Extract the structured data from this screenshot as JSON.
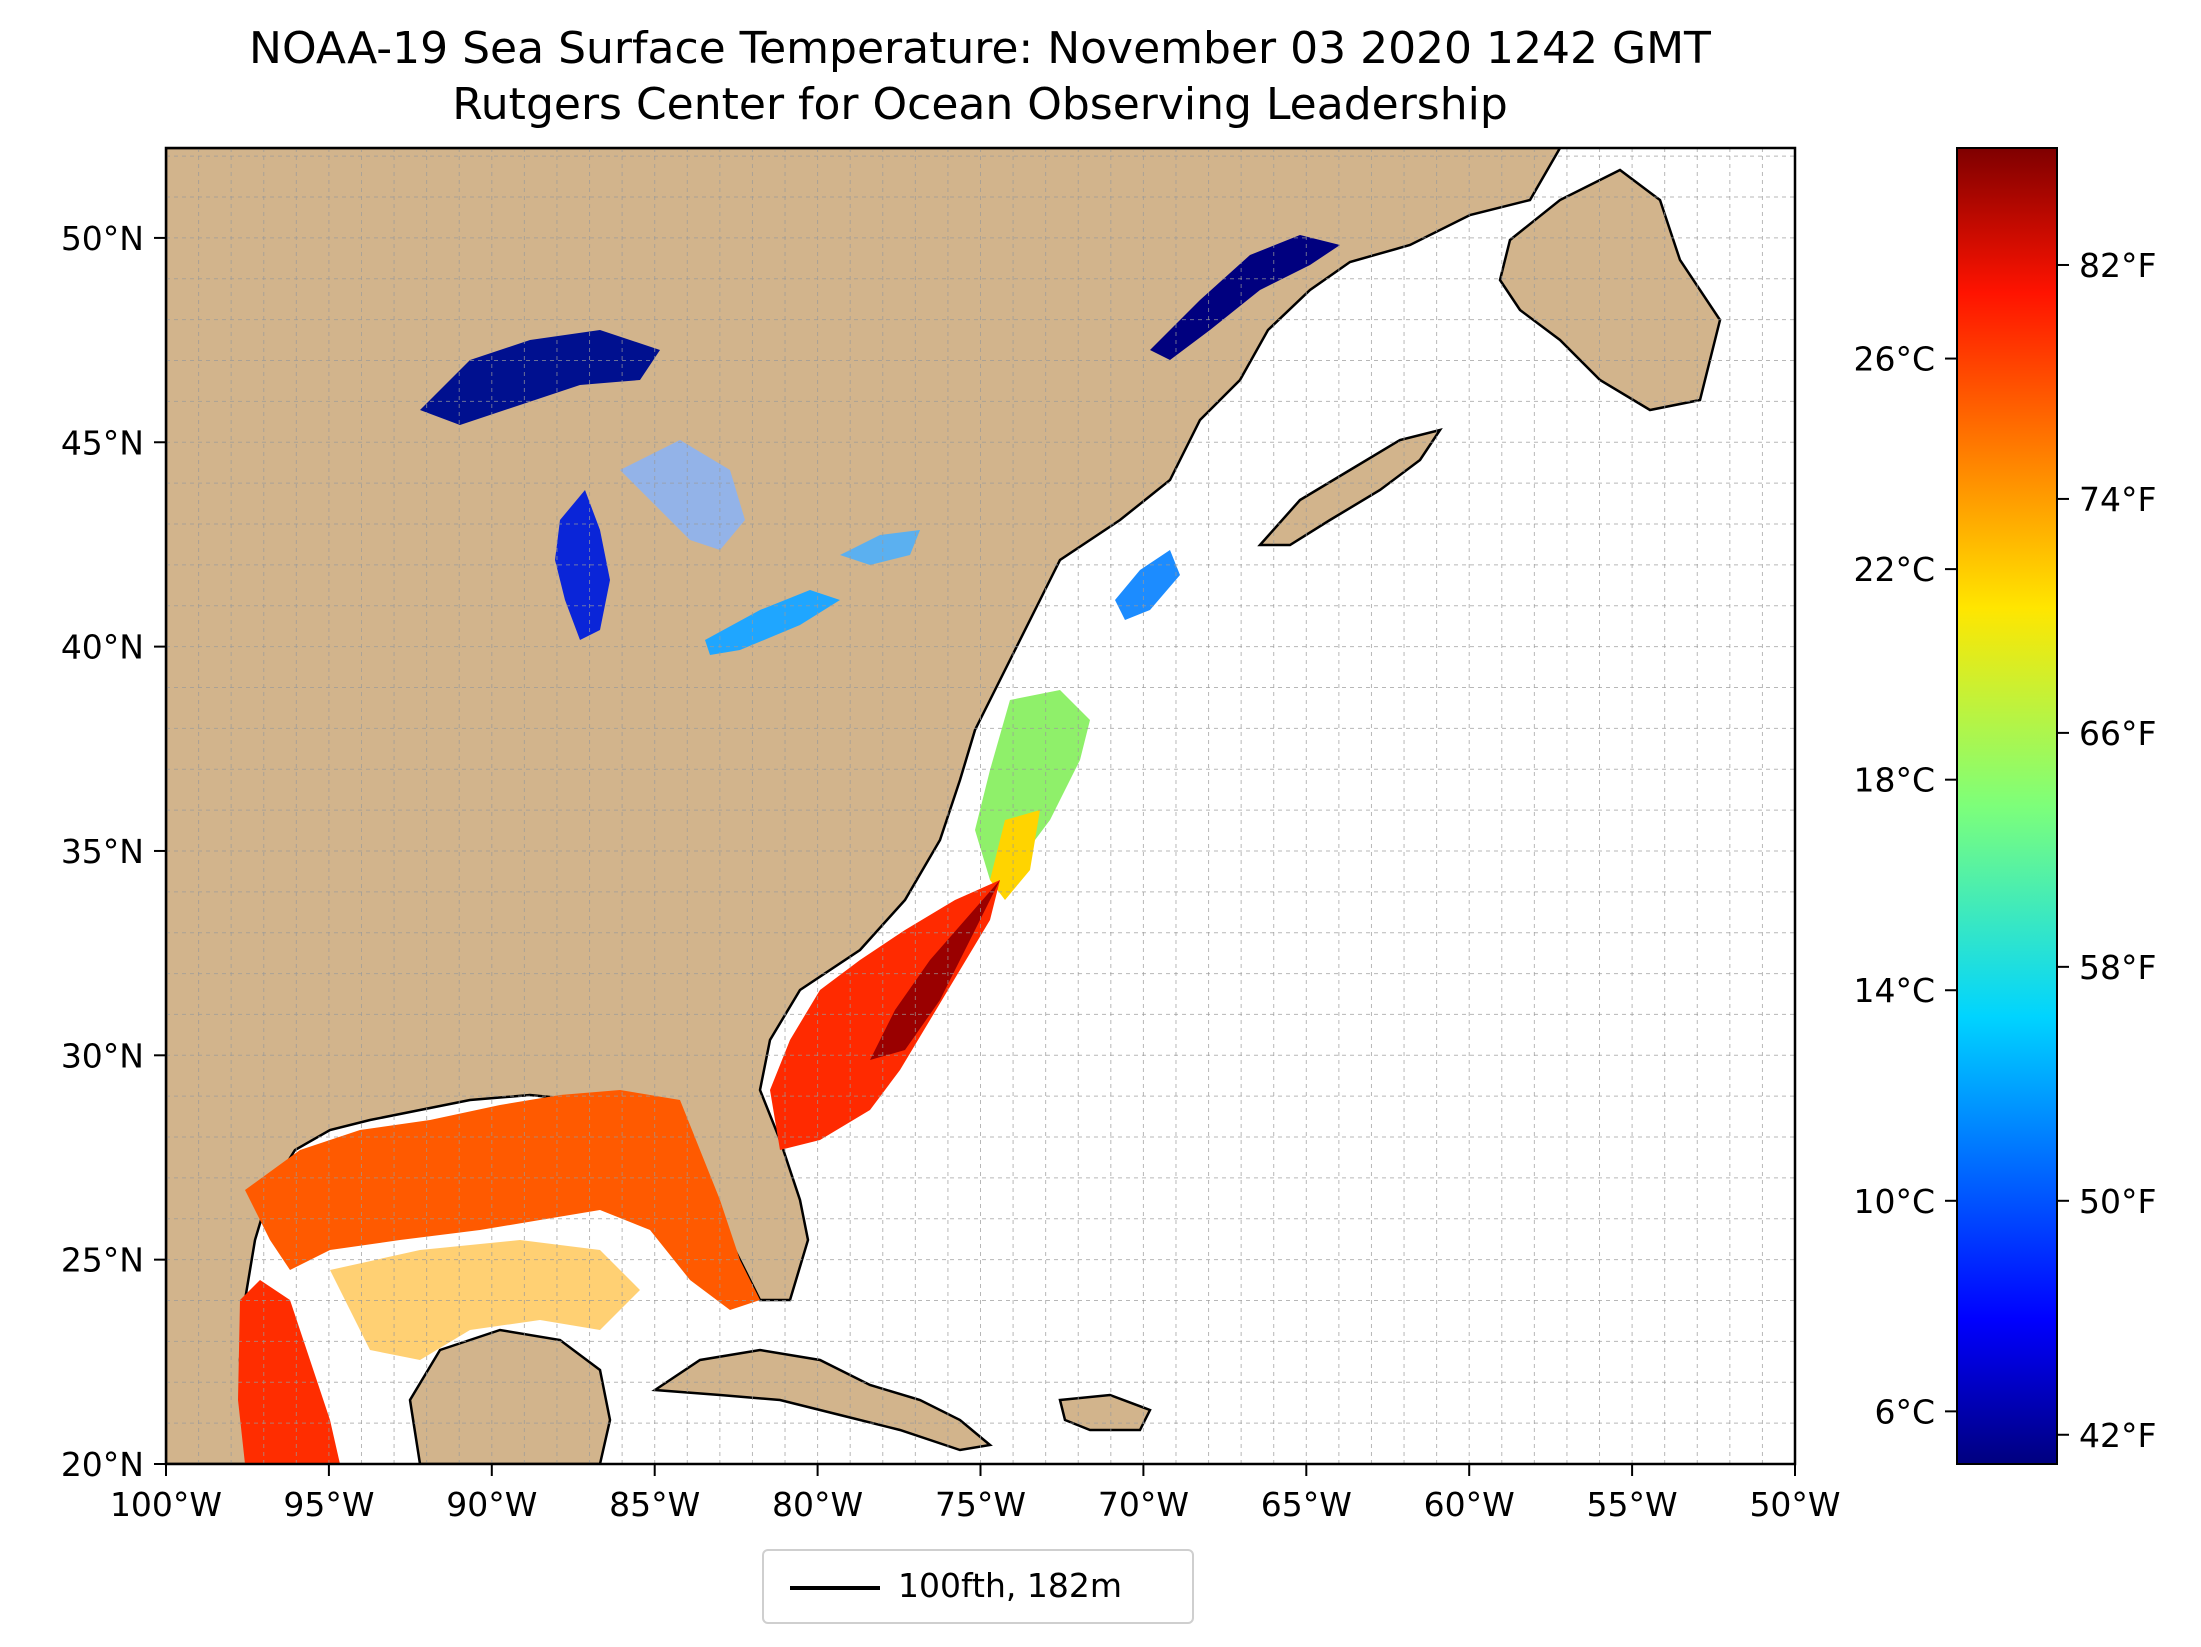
{
  "title": "NOAA-19 Sea Surface Temperature: November 03 2020 1242 GMT",
  "subtitle": "Rutgers Center for Ocean Observing Leadership",
  "map": {
    "lon_range": [
      -100,
      -50
    ],
    "lat_range": [
      20,
      52.2
    ],
    "lon_ticks": [
      -100,
      -95,
      -90,
      -85,
      -80,
      -75,
      -70,
      -65,
      -60,
      -55,
      -50
    ],
    "lon_tick_labels": [
      "100°W",
      "95°W",
      "90°W",
      "85°W",
      "80°W",
      "75°W",
      "70°W",
      "65°W",
      "60°W",
      "55°W",
      "50°W"
    ],
    "lat_ticks": [
      20,
      25,
      30,
      35,
      40,
      45,
      50
    ],
    "lat_tick_labels": [
      "20°N",
      "25°N",
      "30°N",
      "35°N",
      "40°N",
      "45°N",
      "50°N"
    ],
    "gridlines": true,
    "land_color": "#d2b48c",
    "ocean_color": "#ffffff"
  },
  "colorbar": {
    "colormap": "jet",
    "range_celsius": [
      5.0,
      30.0
    ],
    "celsius_ticks": [
      6,
      10,
      14,
      18,
      22,
      26
    ],
    "celsius_tick_labels": [
      "6°C",
      "10°C",
      "14°C",
      "18°C",
      "22°C",
      "26°C"
    ],
    "fahrenheit_ticks": [
      42,
      50,
      58,
      66,
      74,
      82
    ],
    "fahrenheit_tick_labels": [
      "42°F",
      "50°F",
      "58°F",
      "66°F",
      "74°F",
      "82°F"
    ]
  },
  "legend": {
    "label": "100fth, 182m",
    "placement": "below"
  }
}
